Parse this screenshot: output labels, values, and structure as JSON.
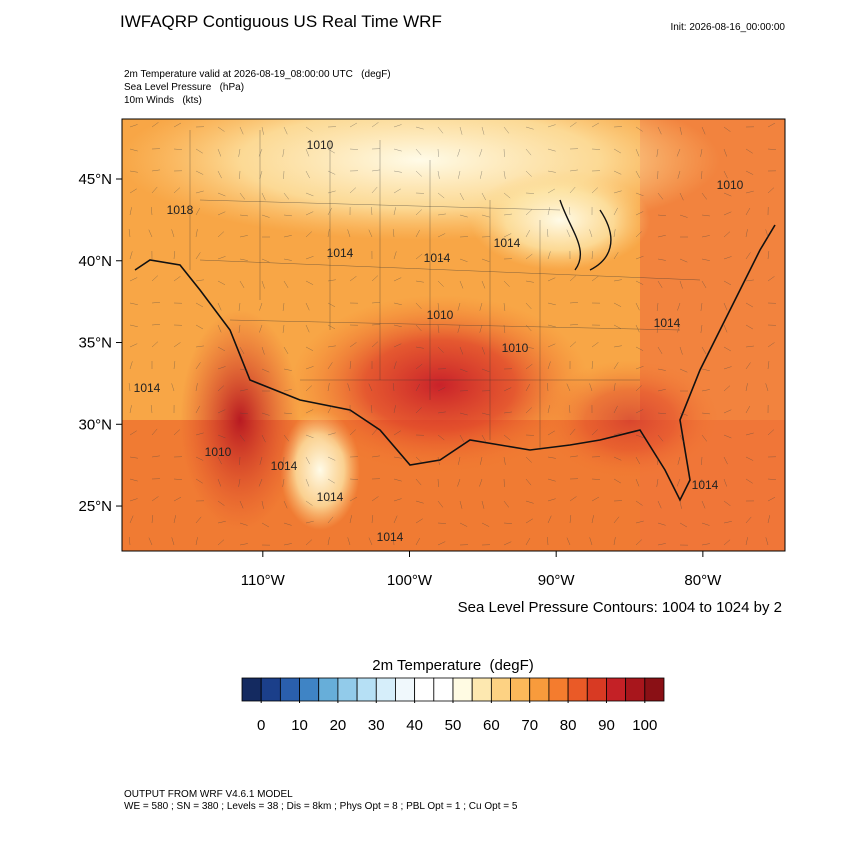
{
  "header": {
    "title": "IWFAQRP Contiguous US Real Time WRF",
    "init": "Init: 2026-08-16_00:00:00",
    "fields": [
      "2m Temperature valid at 2026-08-19_08:00:00 UTC   (degF)",
      "Sea Level Pressure   (hPa)",
      "10m Winds   (kts)"
    ]
  },
  "map": {
    "lat_range": [
      22.25,
      48.67
    ],
    "lon_range": [
      -119.6,
      -74.4
    ],
    "lat_ticks": [
      {
        "value": 45,
        "label": "45°N"
      },
      {
        "value": 40,
        "label": "40°N"
      },
      {
        "value": 35,
        "label": "35°N"
      },
      {
        "value": 30,
        "label": "30°N"
      },
      {
        "value": 25,
        "label": "25°N"
      }
    ],
    "lon_ticks": [
      {
        "value": -110,
        "label": "110°W"
      },
      {
        "value": -100,
        "label": "100°W"
      },
      {
        "value": -90,
        "label": "90°W"
      },
      {
        "value": -80,
        "label": "80°W"
      }
    ],
    "contour_labels": [
      "1010",
      "1018",
      "1014",
      "1014",
      "1014",
      "1010",
      "1010",
      "1010",
      "1014",
      "1014",
      "1010",
      "1014",
      "1014",
      "1014",
      "1014"
    ],
    "contour_note": "Sea Level Pressure Contours: 1004 to 1024 by 2"
  },
  "colorbar": {
    "title": "2m Temperature  (degF)",
    "range": [
      -5,
      105
    ],
    "ticks": [
      0,
      10,
      20,
      30,
      40,
      50,
      60,
      70,
      80,
      90,
      100
    ],
    "colors": [
      "#142a60",
      "#1b3f8a",
      "#2a5fad",
      "#3f84c5",
      "#67aed9",
      "#92cbea",
      "#b6e0f5",
      "#d6eefa",
      "#f0f8fc",
      "#ffffff",
      "#ffffff",
      "#fffbe3",
      "#fde8b0",
      "#fdd283",
      "#fbb85a",
      "#f89b3c",
      "#f47c2e",
      "#ea5a27",
      "#d83a23",
      "#c42126",
      "#a8161c",
      "#8a1015"
    ]
  },
  "footer": {
    "model": "OUTPUT FROM WRF V4.6.1 MODEL",
    "settings": "WE = 580 ; SN = 380 ; Levels = 38 ; Dis = 8km ; Phys Opt = 8 ; PBL Opt = 1 ; Cu Opt = 5"
  }
}
